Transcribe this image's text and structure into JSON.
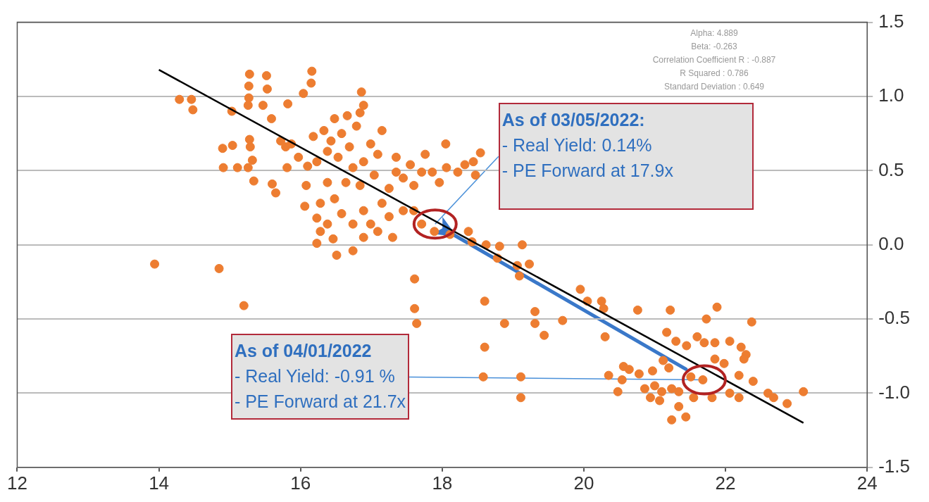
{
  "chart_data": {
    "type": "scatter",
    "marker": "circle",
    "grid": "y",
    "legend": false,
    "xlim": [
      12,
      24
    ],
    "xticks": [
      12,
      14,
      16,
      18,
      20,
      22,
      24
    ],
    "ylim": [
      -1.5,
      1.5
    ],
    "yticks": [
      {
        "value": -1.5,
        "label": "-1.5"
      },
      {
        "value": -1,
        "label": "-1.0"
      },
      -0.5,
      {
        "value": 0,
        "label": "0.0"
      },
      0.5,
      {
        "value": 1,
        "label": "1.0"
      },
      1.5
    ],
    "series": [
      {
        "color": "#ed7d31",
        "x": [
          13.94,
          14.29,
          14.48,
          14.46,
          14.85,
          15.2,
          14.9,
          15.04,
          14.91,
          15.11,
          15.26,
          15.34,
          15.32,
          15.29,
          15.28,
          15.03,
          15.26,
          15.27,
          15.27,
          15.28,
          15.52,
          15.53,
          15.47,
          15.59,
          15.72,
          15.79,
          15.81,
          15.65,
          15.6,
          15.82,
          16.04,
          16.15,
          16.16,
          16.86,
          15.87,
          15.97,
          16.1,
          16.08,
          16.06,
          16.23,
          16.28,
          16.23,
          16.46,
          16.51,
          16.74,
          16.18,
          16.33,
          16.43,
          16.58,
          16.38,
          16.53,
          16.23,
          16.69,
          16.79,
          16.84,
          16.89,
          16.66,
          16.48,
          16.74,
          16.89,
          16.99,
          17.15,
          17.09,
          17.04,
          16.84,
          16.64,
          16.38,
          16.48,
          16.28,
          16.58,
          16.74,
          16.38,
          16.89,
          16.99,
          17.09,
          17.15,
          17.25,
          17.35,
          17.45,
          17.55,
          17.6,
          17.71,
          17.76,
          17.86,
          17.96,
          18.06,
          18.05,
          18.22,
          18.32,
          18.44,
          18.54,
          18.47,
          17.35,
          17.25,
          17.45,
          17.6,
          17.3,
          16.89,
          17.71,
          17.89,
          18.11,
          18.37,
          18.42,
          18.62,
          18.81,
          19.13,
          18.78,
          19.06,
          19.23,
          19.09,
          17.61,
          17.61,
          17.64,
          18.6,
          18.6,
          18.58,
          18.88,
          19.11,
          19.11,
          19.31,
          19.31,
          19.44,
          19.7,
          19.95,
          20.05,
          20.25,
          20.3,
          20.28,
          20.76,
          21.22,
          21.88,
          21.73,
          22.37,
          21.17,
          21.3,
          21.45,
          21.6,
          21.7,
          21.85,
          22.06,
          22.22,
          22.29,
          22.26,
          21.85,
          21.98,
          21.12,
          21.2,
          20.56,
          20.64,
          20.97,
          20.78,
          20.35,
          20.54,
          21.51,
          21.68,
          22.19,
          22.39,
          20.48,
          20.86,
          21.0,
          21.1,
          21.24,
          20.94,
          21.07,
          21.34,
          21.55,
          21.81,
          22.06,
          22.19,
          22.6,
          22.68,
          22.87,
          23.1,
          21.34,
          21.44,
          21.24
        ],
        "values": [
          -0.13,
          0.98,
          0.91,
          0.98,
          -0.16,
          -0.41,
          0.65,
          0.67,
          0.52,
          0.52,
          0.52,
          0.43,
          0.57,
          0.66,
          0.71,
          0.9,
          0.94,
          0.99,
          1.07,
          1.15,
          1.14,
          1.05,
          0.94,
          0.85,
          0.7,
          0.66,
          0.52,
          0.35,
          0.41,
          0.95,
          1.02,
          1.09,
          1.17,
          1.03,
          0.68,
          0.59,
          0.53,
          0.4,
          0.26,
          0.18,
          0.09,
          0.01,
          0.04,
          -0.07,
          -0.04,
          0.73,
          0.77,
          0.7,
          0.75,
          0.63,
          0.59,
          0.56,
          0.66,
          0.8,
          0.89,
          0.94,
          0.87,
          0.85,
          0.52,
          0.56,
          0.68,
          0.77,
          0.61,
          0.47,
          0.4,
          0.42,
          0.42,
          0.31,
          0.28,
          0.21,
          0.14,
          0.14,
          0.23,
          0.14,
          0.09,
          0.28,
          0.38,
          0.49,
          0.45,
          0.54,
          0.4,
          0.49,
          0.61,
          0.49,
          0.42,
          0.52,
          0.68,
          0.49,
          0.54,
          0.56,
          0.62,
          0.47,
          0.59,
          0.19,
          0.23,
          0.23,
          0.05,
          0.05,
          0.14,
          0.09,
          0.07,
          0.09,
          0.02,
          0.0,
          -0.01,
          0.0,
          -0.09,
          -0.14,
          -0.13,
          -0.21,
          -0.23,
          -0.43,
          -0.53,
          -0.38,
          -0.69,
          -0.89,
          -0.53,
          -0.89,
          -1.03,
          -0.45,
          -0.53,
          -0.61,
          -0.51,
          -0.3,
          -0.38,
          -0.38,
          -0.62,
          -0.43,
          -0.44,
          -0.44,
          -0.42,
          -0.5,
          -0.52,
          -0.59,
          -0.65,
          -0.68,
          -0.62,
          -0.66,
          -0.66,
          -0.65,
          -0.69,
          -0.74,
          -0.77,
          -0.77,
          -0.8,
          -0.78,
          -0.83,
          -0.82,
          -0.84,
          -0.85,
          -0.87,
          -0.88,
          -0.91,
          -0.89,
          -0.91,
          -0.88,
          -0.92,
          -0.99,
          -0.97,
          -0.95,
          -0.99,
          -0.97,
          -1.03,
          -1.05,
          -0.99,
          -1.03,
          -1.03,
          -1.0,
          -1.03,
          -1.0,
          -1.03,
          -1.07,
          -0.99,
          -1.09,
          -1.16,
          -1.18
        ]
      },
      {
        "type": "line",
        "marker": "none",
        "color": "#000000",
        "x": [
          14,
          23.1
        ],
        "values": [
          1.18,
          -1.2
        ]
      }
    ],
    "annotations": [
      {
        "text": "As of 03/05/2022:\n- Real Yield: 0.14%\n- PE Forward at 17.9x",
        "x": 17.9,
        "y": 0.14
      },
      {
        "text": "As of 04/01/2022\n- Real Yield: -0.91 %\n- PE Forward at 21.7x",
        "x": 21.7,
        "y": -0.91
      },
      "Alpha: 4.889\nBeta: -0.263\nCorrelation Coefficient R : -0.887\nR Squared : 0.786\nStandard Deviation : 0.649"
    ]
  }
}
